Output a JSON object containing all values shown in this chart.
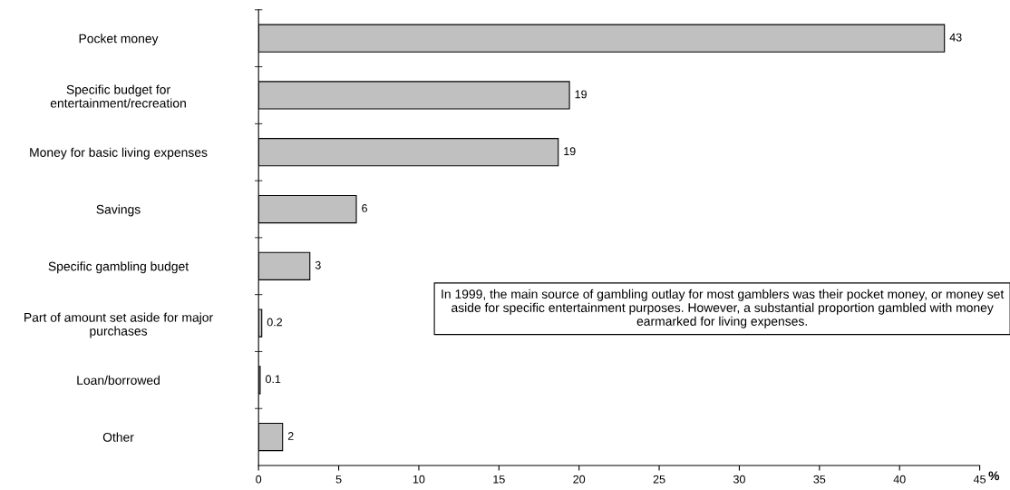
{
  "chart_data": {
    "type": "bar",
    "orientation": "horizontal",
    "categories": [
      "Pocket money",
      "Specific budget for\nentertainment/recreation",
      "Money for basic living expenses",
      "Savings",
      "Specific gambling budget",
      "Part of amount set aside for major\npurchases",
      "Loan/borrowed",
      "Other"
    ],
    "values": [
      42.8,
      19.4,
      18.7,
      6.1,
      3.2,
      0.2,
      0.1,
      1.5
    ],
    "value_labels": [
      "43",
      "19",
      "19",
      "6",
      "3",
      "0.2",
      "0.1",
      "2"
    ],
    "color": "#c0c0c0",
    "xlabel": "%",
    "xlim": [
      0,
      45
    ],
    "xticks": [
      0,
      5,
      10,
      15,
      20,
      25,
      30,
      35,
      40,
      45
    ],
    "grid": false,
    "annotations": [
      "In 1999, the main source of gambling outlay for most gamblers was their pocket money, or money set aside for specific entertainment purposes. However, a substantial proportion gambled with money earmarked for living expenses."
    ]
  }
}
